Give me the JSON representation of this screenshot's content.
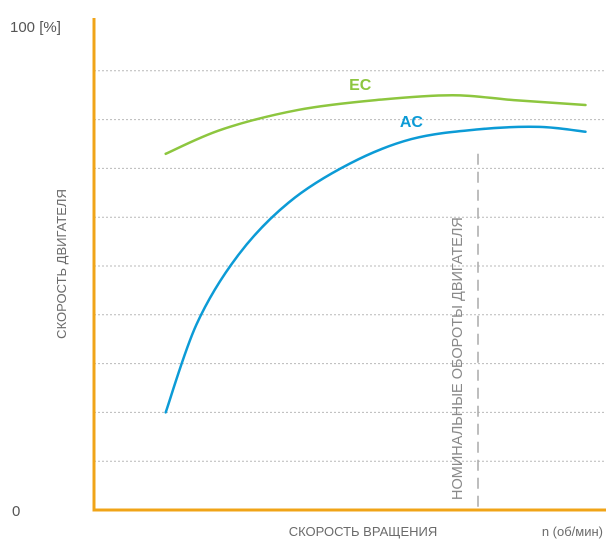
{
  "chart_data": {
    "type": "line",
    "title": "",
    "ylabel": "СКОРОСТЬ ДВИГАТЕЛЯ",
    "xlabel": "СКОРОСТЬ ВРАЩЕНИЯ",
    "x_unit_label": "n (об/мин)",
    "y_top_label": "100 [%]",
    "y_zero_label": "0",
    "xlim": [
      0,
      100
    ],
    "ylim": [
      0,
      100
    ],
    "grid": true,
    "grid_lines": 9,
    "series": [
      {
        "name": "EC",
        "color": "#8dc63f",
        "points": [
          [
            14,
            73
          ],
          [
            25,
            78
          ],
          [
            40,
            82
          ],
          [
            55,
            84
          ],
          [
            70,
            85
          ],
          [
            82,
            84
          ],
          [
            96,
            83
          ]
        ]
      },
      {
        "name": "AC",
        "color": "#0c9bd6",
        "points": [
          [
            14,
            20
          ],
          [
            20,
            38
          ],
          [
            28,
            52
          ],
          [
            38,
            63
          ],
          [
            50,
            71
          ],
          [
            62,
            76
          ],
          [
            75,
            78
          ],
          [
            87,
            78.5
          ],
          [
            96,
            77.5
          ]
        ]
      }
    ],
    "reference_line": {
      "label": "НОМИНАЛЬНЫЕ ОБОРОТЫ ДВИГАТЕЛЯ",
      "x": 75,
      "y_from": 0,
      "y_to": 73
    }
  },
  "colors": {
    "axis": "#f0a418",
    "grid": "#b9b9b9",
    "reference_line": "#a8a8a8"
  }
}
